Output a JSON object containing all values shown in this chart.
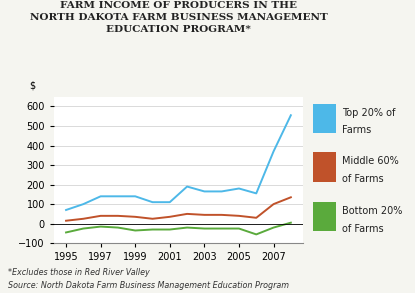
{
  "title_line1": "FARM INCOME OF PRODUCERS IN THE",
  "title_line2": "NORTH DAKOTA FARM BUSINESS MANAGEMENT",
  "title_line3": "EDUCATION PROGRAM*",
  "ylabel": "$",
  "footnote1": "*Excludes those in Red River Valley",
  "footnote2": "Source: North Dakota Farm Business Management Education Program",
  "years": [
    1995,
    1996,
    1997,
    1998,
    1999,
    2000,
    2001,
    2002,
    2003,
    2004,
    2005,
    2006,
    2007,
    2008
  ],
  "top20": [
    70,
    100,
    140,
    140,
    140,
    110,
    110,
    190,
    165,
    165,
    180,
    155,
    370,
    555
  ],
  "mid60": [
    15,
    25,
    40,
    40,
    35,
    25,
    35,
    50,
    45,
    45,
    40,
    30,
    100,
    135
  ],
  "bot20": [
    -45,
    -25,
    -15,
    -20,
    -35,
    -30,
    -30,
    -20,
    -25,
    -25,
    -25,
    -55,
    -20,
    5
  ],
  "top20_color": "#4db8e8",
  "mid60_color": "#c0522a",
  "bot20_color": "#5aaa3c",
  "legend_labels": [
    "Top 20% of\nFarms",
    "Middle 60%\nof Farms",
    "Bottom 20%\nof Farms"
  ],
  "ylim": [
    -100,
    650
  ],
  "yticks": [
    -100,
    0,
    100,
    200,
    300,
    400,
    500,
    600
  ],
  "xtick_years": [
    1995,
    1997,
    1999,
    2001,
    2003,
    2005,
    2007
  ],
  "bg_color": "#f5f5f0",
  "plot_bg": "#ffffff",
  "legend_bg": "#d8d8d8",
  "title_fontsize": 7.5,
  "tick_fontsize": 7,
  "legend_fontsize": 7,
  "footnote_fontsize": 5.8
}
